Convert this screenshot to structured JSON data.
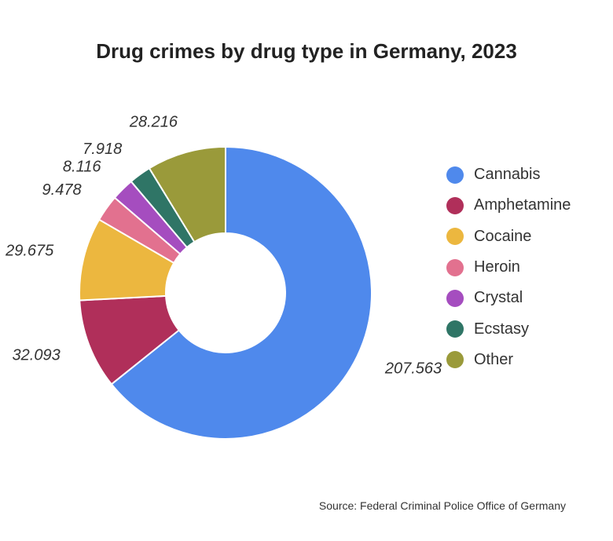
{
  "chart_data": {
    "type": "pie",
    "title": "Drug crimes by drug type in Germany, 2023",
    "categories": [
      "Cannabis",
      "Amphetamine",
      "Cocaine",
      "Heroin",
      "Crystal",
      "Ecstasy",
      "Other"
    ],
    "values": [
      207563,
      32093,
      29675,
      9478,
      8116,
      7918,
      28216
    ],
    "value_labels": [
      "207.563",
      "32.093",
      "29.675",
      "9.478",
      "8.116",
      "7.918",
      "28.216"
    ],
    "colors": [
      "#4F89EC",
      "#B02F5A",
      "#ECB73F",
      "#E2718F",
      "#A54DBF",
      "#2F7566",
      "#9A9A3A"
    ],
    "legend_position": "right",
    "donut": true
  },
  "source": "Source: Federal Criminal Police Office of Germany"
}
